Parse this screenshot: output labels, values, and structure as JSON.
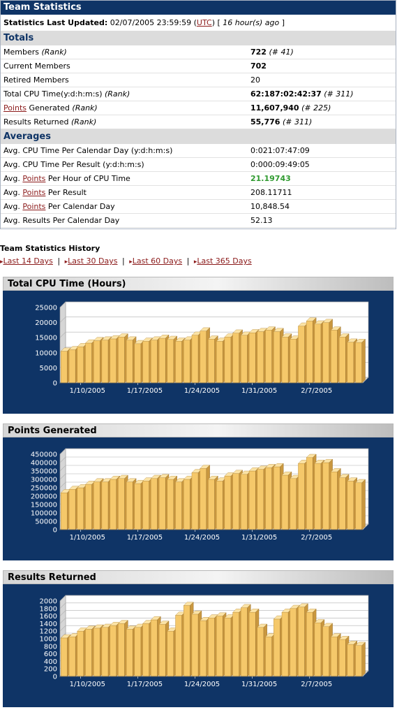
{
  "header": {
    "title": "Team Statistics"
  },
  "updated": {
    "label": "Statistics Last Updated:",
    "datetime": "02/07/2005 23:59:59",
    "tz_open": "(",
    "tz_link": "UTC",
    "tz_close": ")",
    "ago": "[ ",
    "ago_italic": "16 hour(s) ago",
    "ago_end": " ]"
  },
  "totals": {
    "heading": "Totals",
    "rows": [
      {
        "label": "Members",
        "label_italic": "(Rank)",
        "value": "722",
        "rank": "(# 41)"
      },
      {
        "label": "Current Members",
        "value": "702"
      },
      {
        "label": "Retired Members",
        "value": "20"
      },
      {
        "label": "Total CPU Time(y:d:h:m:s)",
        "label_italic": "(Rank)",
        "value": "62:187:02:42:37",
        "rank": "(# 311)"
      },
      {
        "link": "Points",
        "label": " Generated",
        "label_italic": "(Rank)",
        "value": "11,607,940",
        "rank": "(# 225)"
      },
      {
        "label": "Results Returned",
        "label_italic": "(Rank)",
        "value": "55,776",
        "rank": "(# 311)"
      }
    ]
  },
  "averages": {
    "heading": "Averages",
    "rows": [
      {
        "label": "Avg. CPU Time Per Calendar Day (y:d:h:m:s)",
        "value": "0:021:07:47:09"
      },
      {
        "label": "Avg. CPU Time Per Result (y:d:h:m:s)",
        "value": "0:000:09:49:05"
      },
      {
        "pre": "Avg. ",
        "link": "Points",
        "label": " Per Hour of CPU Time",
        "value": "21.19743"
      },
      {
        "pre": "Avg. ",
        "link": "Points",
        "label": " Per Result",
        "value": "208.11711"
      },
      {
        "pre": "Avg. ",
        "link": "Points",
        "label": " Per Calendar Day",
        "value": "10,848.54"
      },
      {
        "label": "Avg. Results Per Calendar Day",
        "value": "52.13"
      }
    ]
  },
  "history": {
    "title": "Team Statistics History",
    "links": [
      "Last 14 Days",
      "Last 30 Days",
      "Last 60 Days",
      "Last 365 Days"
    ],
    "separator": "|"
  },
  "colors": {
    "navy": "#0f3466",
    "bar": "#f5c86a",
    "link": "#8b1a1a",
    "green": "#2f9a2f"
  },
  "chart_data": [
    {
      "type": "bar",
      "title": "Total CPU Time (Hours)",
      "x_tick_labels": [
        "1/10/2005",
        "1/17/2005",
        "1/24/2005",
        "1/31/2005",
        "2/7/2005"
      ],
      "ylim": [
        0,
        25000
      ],
      "y_ticks": [
        0,
        5000,
        10000,
        15000,
        20000,
        25000
      ],
      "values": [
        10500,
        11000,
        12000,
        13200,
        14000,
        14200,
        14600,
        15200,
        14200,
        13000,
        13800,
        14200,
        14800,
        14400,
        13800,
        14200,
        15800,
        17200,
        14500,
        13800,
        15200,
        16500,
        15800,
        16600,
        17000,
        17500,
        17000,
        15200,
        14500,
        18800,
        20500,
        19500,
        20000,
        17500,
        15200,
        13500,
        13400
      ]
    },
    {
      "type": "bar",
      "title": "Points Generated",
      "x_tick_labels": [
        "1/10/2005",
        "1/17/2005",
        "1/24/2005",
        "1/31/2005",
        "2/7/2005"
      ],
      "ylim": [
        0,
        450000
      ],
      "y_ticks": [
        0,
        50000,
        100000,
        150000,
        200000,
        250000,
        300000,
        350000,
        400000,
        450000
      ],
      "values": [
        220000,
        240000,
        250000,
        270000,
        285000,
        285000,
        300000,
        305000,
        285000,
        275000,
        290000,
        305000,
        310000,
        300000,
        285000,
        300000,
        340000,
        365000,
        300000,
        290000,
        320000,
        335000,
        330000,
        350000,
        360000,
        370000,
        375000,
        325000,
        305000,
        395000,
        430000,
        395000,
        400000,
        345000,
        310000,
        290000,
        280000
      ]
    },
    {
      "type": "bar",
      "title": "Results Returned",
      "x_tick_labels": [
        "1/10/2005",
        "1/17/2005",
        "1/24/2005",
        "1/31/2005",
        "2/7/2005"
      ],
      "ylim": [
        0,
        2000
      ],
      "y_ticks": [
        0,
        200,
        400,
        600,
        800,
        1000,
        1200,
        1400,
        1600,
        1800,
        2000
      ],
      "values": [
        1020,
        1050,
        1200,
        1250,
        1280,
        1300,
        1350,
        1400,
        1250,
        1300,
        1400,
        1500,
        1380,
        1200,
        1620,
        1880,
        1650,
        1480,
        1550,
        1600,
        1550,
        1700,
        1820,
        1700,
        1300,
        1050,
        1520,
        1700,
        1800,
        1840,
        1700,
        1420,
        1320,
        1050,
        980,
        850,
        820
      ]
    }
  ]
}
